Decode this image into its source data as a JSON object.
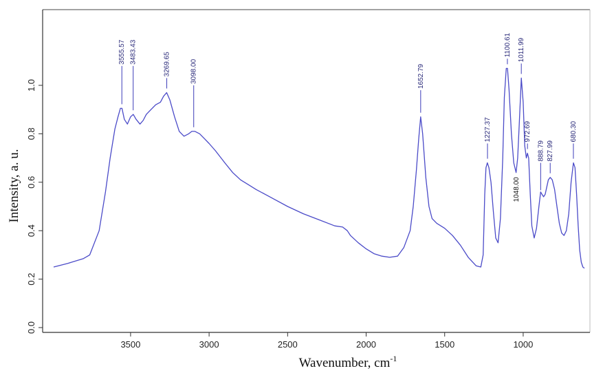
{
  "chart_data": {
    "type": "line",
    "title": "",
    "xlabel": "Wavenumber, cm",
    "xlabel_superscript": "-1",
    "ylabel": "Intensity, a. u.",
    "xlim": [
      4000,
      600
    ],
    "x_reversed": true,
    "ylim": [
      0.0,
      1.3
    ],
    "xticks": [
      3500,
      3000,
      2500,
      2000,
      1500,
      1000
    ],
    "xtick_labels": [
      "3500",
      "3000",
      "2500",
      "2000",
      "1500",
      "1000"
    ],
    "yticks": [
      0.0,
      0.2,
      0.4,
      0.6,
      0.8,
      1.0
    ],
    "ytick_labels": [
      "0.0",
      "0.2",
      "0.4",
      "0.6",
      "0.8",
      "1.0"
    ],
    "grid": false,
    "series": [
      {
        "color": "#4a4ac8",
        "x": [
          3990,
          3900,
          3800,
          3760,
          3700,
          3660,
          3630,
          3600,
          3580,
          3565,
          3555,
          3540,
          3520,
          3500,
          3483,
          3465,
          3440,
          3420,
          3400,
          3370,
          3340,
          3310,
          3290,
          3270,
          3250,
          3220,
          3190,
          3160,
          3130,
          3110,
          3090,
          3060,
          3030,
          3000,
          2960,
          2900,
          2850,
          2800,
          2750,
          2700,
          2600,
          2500,
          2400,
          2300,
          2200,
          2150,
          2120,
          2100,
          2050,
          2000,
          1950,
          1900,
          1850,
          1800,
          1760,
          1720,
          1700,
          1680,
          1665,
          1653,
          1640,
          1620,
          1600,
          1580,
          1550,
          1500,
          1450,
          1400,
          1350,
          1300,
          1270,
          1255,
          1245,
          1237,
          1228,
          1218,
          1205,
          1190,
          1175,
          1160,
          1145,
          1130,
          1120,
          1108,
          1100,
          1090,
          1075,
          1060,
          1045,
          1035,
          1025,
          1012,
          1000,
          990,
          980,
          973,
          965,
          955,
          945,
          930,
          915,
          900,
          889,
          880,
          870,
          860,
          850,
          840,
          828,
          815,
          800,
          785,
          770,
          755,
          740,
          725,
          710,
          695,
          680,
          670,
          660,
          650,
          640,
          630,
          620,
          610
        ],
        "y": [
          0.25,
          0.265,
          0.285,
          0.3,
          0.4,
          0.56,
          0.7,
          0.82,
          0.87,
          0.905,
          0.905,
          0.86,
          0.84,
          0.87,
          0.88,
          0.86,
          0.84,
          0.855,
          0.88,
          0.9,
          0.92,
          0.93,
          0.955,
          0.97,
          0.94,
          0.87,
          0.81,
          0.79,
          0.8,
          0.81,
          0.81,
          0.8,
          0.78,
          0.76,
          0.73,
          0.68,
          0.64,
          0.61,
          0.59,
          0.57,
          0.535,
          0.5,
          0.47,
          0.445,
          0.42,
          0.415,
          0.4,
          0.38,
          0.35,
          0.325,
          0.305,
          0.295,
          0.29,
          0.295,
          0.33,
          0.4,
          0.5,
          0.65,
          0.78,
          0.87,
          0.8,
          0.62,
          0.5,
          0.45,
          0.43,
          0.41,
          0.38,
          0.34,
          0.29,
          0.255,
          0.25,
          0.3,
          0.55,
          0.66,
          0.68,
          0.66,
          0.6,
          0.48,
          0.37,
          0.35,
          0.45,
          0.7,
          0.95,
          1.07,
          1.07,
          0.98,
          0.8,
          0.68,
          0.64,
          0.7,
          0.84,
          1.03,
          0.93,
          0.75,
          0.7,
          0.72,
          0.7,
          0.55,
          0.42,
          0.37,
          0.41,
          0.5,
          0.56,
          0.55,
          0.54,
          0.55,
          0.58,
          0.61,
          0.62,
          0.61,
          0.57,
          0.5,
          0.43,
          0.39,
          0.38,
          0.4,
          0.47,
          0.6,
          0.68,
          0.66,
          0.55,
          0.42,
          0.32,
          0.27,
          0.25,
          0.245
        ]
      }
    ],
    "annotations": [
      {
        "text": "3555.57",
        "x": 3555.57,
        "y": 0.905,
        "label_y": 1.08
      },
      {
        "text": "3483.43",
        "x": 3483.43,
        "y": 0.88,
        "label_y": 1.08
      },
      {
        "text": "3269.65",
        "x": 3269.65,
        "y": 0.97,
        "label_y": 1.03
      },
      {
        "text": "3098.00",
        "x": 3098.0,
        "y": 0.81,
        "label_y": 1.0
      },
      {
        "text": "1652.79",
        "x": 1652.79,
        "y": 0.87,
        "label_y": 0.98
      },
      {
        "text": "1227.37",
        "x": 1227.37,
        "y": 0.68,
        "label_y": 0.76
      },
      {
        "text": "1100.61",
        "x": 1100.61,
        "y": 1.07,
        "label_y": 1.11
      },
      {
        "text": "1011.99",
        "x": 1011.99,
        "y": 1.03,
        "label_y": 1.09
      },
      {
        "text": "972.69",
        "x": 972.69,
        "y": 0.72,
        "label_y": 0.76
      },
      {
        "text": "888.79",
        "x": 888.79,
        "y": 0.55,
        "label_y": 0.68
      },
      {
        "text": "827.99",
        "x": 827.99,
        "y": 0.62,
        "label_y": 0.68
      },
      {
        "text": "680.30",
        "x": 680.3,
        "y": 0.68,
        "label_y": 0.76
      },
      {
        "text": "1048.00",
        "x": 1048.0,
        "y": 0.57,
        "label_y": 0.57,
        "no_line": true
      }
    ]
  }
}
